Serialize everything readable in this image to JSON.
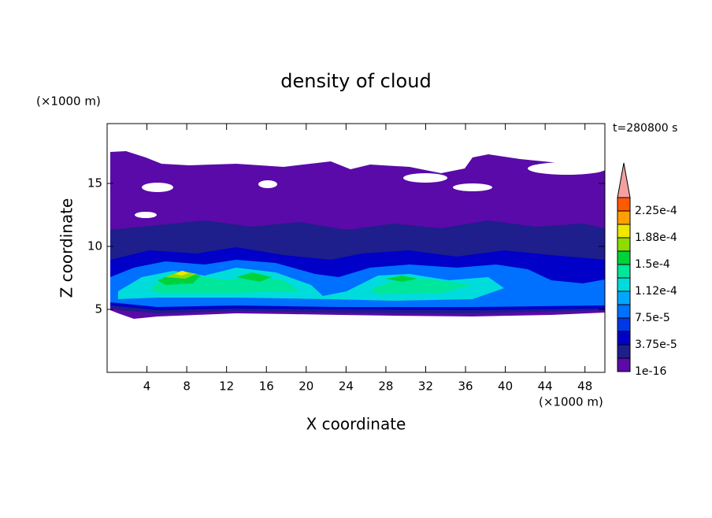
{
  "chart_data": {
    "type": "contour",
    "title": "density of cloud",
    "x_label": "X coordinate",
    "y_label": "Z coordinate",
    "x_unit": "(×1000 m)",
    "y_unit": "(×1000 m)",
    "time_label": "t=280800 s",
    "xlim": [
      0,
      50
    ],
    "ylim": [
      0,
      19.75
    ],
    "xticks": [
      4,
      8,
      12,
      16,
      20,
      24,
      28,
      32,
      36,
      40,
      44,
      48
    ],
    "yticks": [
      5,
      10,
      15
    ],
    "colorbar": {
      "levels": [
        1e-16,
        1.875e-05,
        {
          "value": 3.75e-05,
          "label": "3.75e-5"
        },
        5.625e-05,
        {
          "value": 7.5e-05,
          "label": "7.5e-5"
        },
        9.375e-05,
        {
          "value": 0.000112,
          "label": "1.12e-4"
        },
        0.00013125,
        {
          "value": 0.00015,
          "label": "1.5e-4"
        },
        0.00016875,
        {
          "value": 0.000188,
          "label": "1.88e-4"
        },
        0.00020625,
        {
          "value": 0.000225,
          "label": "2.25e-4"
        },
        0.00024375
      ],
      "colors": [
        "#5a0aa8",
        "#1e1e8c",
        "#0000c8",
        "#0038e6",
        "#0070ff",
        "#00a8ff",
        "#00dcdc",
        "#00e69b",
        "#00d23c",
        "#8cdc00",
        "#f0e600",
        "#ffa000",
        "#ff5a00"
      ],
      "extend_color": "#f4a0a0"
    }
  }
}
